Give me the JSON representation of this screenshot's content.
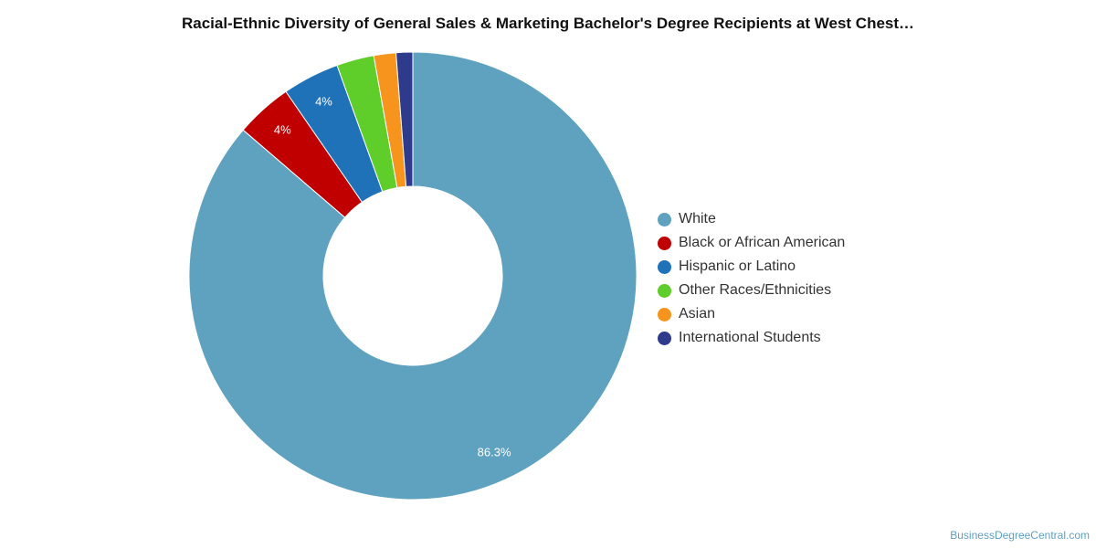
{
  "chart_data": {
    "type": "pie",
    "title": "Racial-Ethnic Diversity of General Sales & Marketing Bachelor's Degree Recipients at West Chest…",
    "donut": true,
    "legend_position": "right",
    "slices": [
      {
        "label": "White",
        "value": 86.3,
        "display": "86.3%",
        "color": "#5fa2bf"
      },
      {
        "label": "Black or African American",
        "value": 4.1,
        "display": "4%",
        "color": "#c00000"
      },
      {
        "label": "Hispanic or Latino",
        "value": 4.1,
        "display": "4%",
        "color": "#1f71b8"
      },
      {
        "label": "Other Races/Ethnicities",
        "value": 2.7,
        "display": "",
        "color": "#5fcd2a"
      },
      {
        "label": "Asian",
        "value": 1.6,
        "display": "",
        "color": "#f7941d"
      },
      {
        "label": "International Students",
        "value": 1.2,
        "display": "",
        "color": "#2e3a8c"
      }
    ]
  },
  "source": "BusinessDegreeCentral.com"
}
